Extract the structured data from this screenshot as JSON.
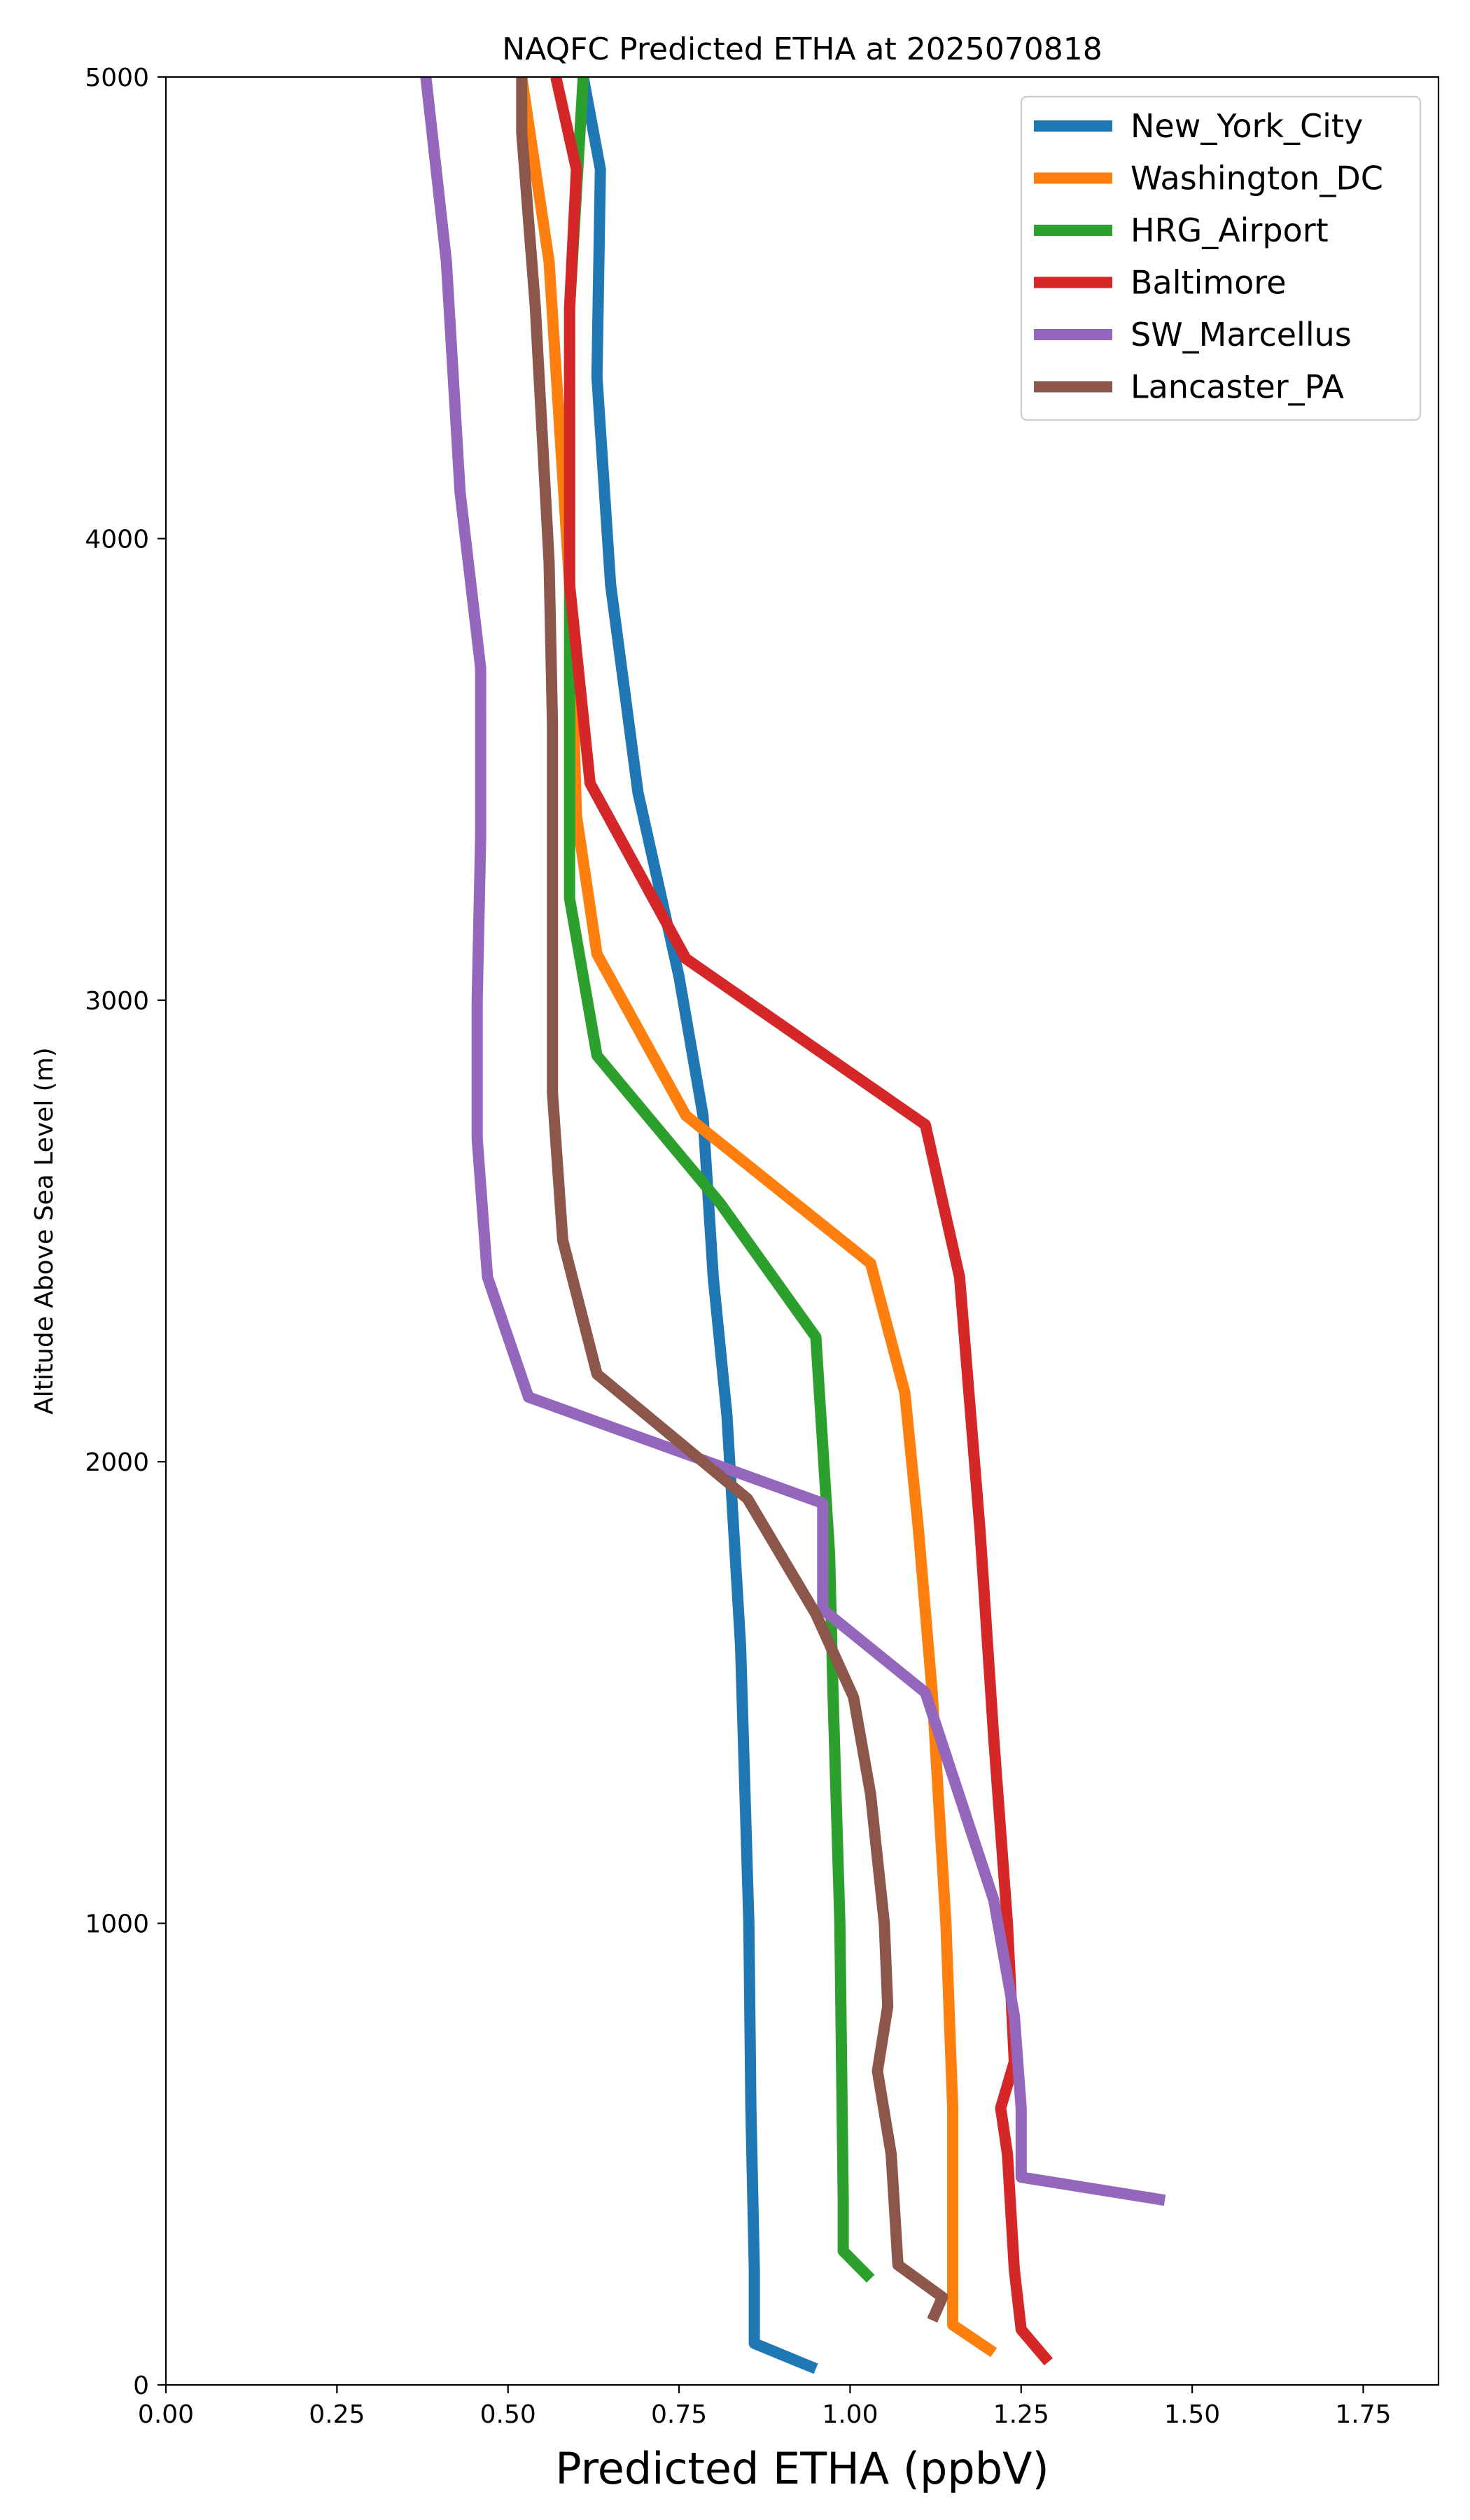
{
  "chart_data": {
    "type": "line",
    "title": "NAQFC Predicted ETHA at 2025070818",
    "xlabel": "Predicted ETHA (ppbV)",
    "ylabel": "Altitude Above Sea Level (m)",
    "xlim": [
      0,
      1.86
    ],
    "ylim": [
      0,
      5000
    ],
    "x_ticks": [
      "0.00",
      "0.25",
      "0.50",
      "0.75",
      "1.00",
      "1.25",
      "1.50",
      "1.75"
    ],
    "y_ticks": [
      "0",
      "1000",
      "2000",
      "3000",
      "4000",
      "5000"
    ],
    "grid": false,
    "legend_position": "top-right",
    "series": [
      {
        "name": "New_York_City",
        "color": "#1f77b4",
        "points": [
          [
            0.95,
            35
          ],
          [
            0.86,
            90
          ],
          [
            0.86,
            250
          ],
          [
            0.855,
            600
          ],
          [
            0.852,
            1000
          ],
          [
            0.84,
            1600
          ],
          [
            0.82,
            2100
          ],
          [
            0.8,
            2400
          ],
          [
            0.785,
            2750
          ],
          [
            0.75,
            3050
          ],
          [
            0.69,
            3450
          ],
          [
            0.65,
            3900
          ],
          [
            0.63,
            4350
          ],
          [
            0.635,
            4800
          ],
          [
            0.61,
            5000
          ]
        ]
      },
      {
        "name": "Washington_DC",
        "color": "#ff7f0e",
        "points": [
          [
            1.21,
            70
          ],
          [
            1.15,
            130
          ],
          [
            1.15,
            600
          ],
          [
            1.14,
            1000
          ],
          [
            1.12,
            1500
          ],
          [
            1.1,
            1850
          ],
          [
            1.08,
            2150
          ],
          [
            1.03,
            2430
          ],
          [
            0.76,
            2750
          ],
          [
            0.63,
            3100
          ],
          [
            0.6,
            3400
          ],
          [
            0.59,
            3900
          ],
          [
            0.56,
            4600
          ],
          [
            0.53,
            4900
          ],
          [
            0.52,
            5000
          ]
        ]
      },
      {
        "name": "HRG_Airport",
        "color": "#2ca02c",
        "points": [
          [
            1.03,
            230
          ],
          [
            0.99,
            290
          ],
          [
            0.99,
            400
          ],
          [
            0.985,
            1000
          ],
          [
            0.975,
            1500
          ],
          [
            0.97,
            1800
          ],
          [
            0.95,
            2270
          ],
          [
            0.81,
            2560
          ],
          [
            0.63,
            2880
          ],
          [
            0.59,
            3220
          ],
          [
            0.59,
            3800
          ],
          [
            0.59,
            4500
          ],
          [
            0.61,
            5000
          ]
        ]
      },
      {
        "name": "Baltimore",
        "color": "#d62728",
        "points": [
          [
            1.29,
            50
          ],
          [
            1.25,
            120
          ],
          [
            1.24,
            250
          ],
          [
            1.23,
            500
          ],
          [
            1.22,
            600
          ],
          [
            1.24,
            700
          ],
          [
            1.23,
            1000
          ],
          [
            1.21,
            1400
          ],
          [
            1.19,
            1850
          ],
          [
            1.16,
            2400
          ],
          [
            1.11,
            2730
          ],
          [
            0.76,
            3090
          ],
          [
            0.62,
            3470
          ],
          [
            0.59,
            3900
          ],
          [
            0.59,
            4500
          ],
          [
            0.6,
            4800
          ],
          [
            0.57,
            5000
          ]
        ]
      },
      {
        "name": "SW_Marcellus",
        "color": "#9467bd",
        "points": [
          [
            1.46,
            400
          ],
          [
            1.25,
            450
          ],
          [
            1.25,
            600
          ],
          [
            1.24,
            800
          ],
          [
            1.21,
            1050
          ],
          [
            1.11,
            1500
          ],
          [
            0.96,
            1680
          ],
          [
            0.96,
            1910
          ],
          [
            0.53,
            2140
          ],
          [
            0.47,
            2400
          ],
          [
            0.455,
            2700
          ],
          [
            0.455,
            3000
          ],
          [
            0.46,
            3350
          ],
          [
            0.46,
            3720
          ],
          [
            0.43,
            4100
          ],
          [
            0.41,
            4600
          ],
          [
            0.38,
            5000
          ]
        ]
      },
      {
        "name": "Lancaster_PA",
        "color": "#8c564b",
        "points": [
          [
            1.12,
            140
          ],
          [
            1.135,
            190
          ],
          [
            1.07,
            260
          ],
          [
            1.06,
            500
          ],
          [
            1.04,
            680
          ],
          [
            1.055,
            820
          ],
          [
            1.05,
            1000
          ],
          [
            1.03,
            1280
          ],
          [
            1.005,
            1490
          ],
          [
            0.95,
            1670
          ],
          [
            0.85,
            1920
          ],
          [
            0.63,
            2190
          ],
          [
            0.58,
            2480
          ],
          [
            0.565,
            2800
          ],
          [
            0.565,
            3200
          ],
          [
            0.565,
            3600
          ],
          [
            0.56,
            3950
          ],
          [
            0.54,
            4500
          ],
          [
            0.52,
            4880
          ],
          [
            0.52,
            5000
          ]
        ]
      }
    ]
  }
}
